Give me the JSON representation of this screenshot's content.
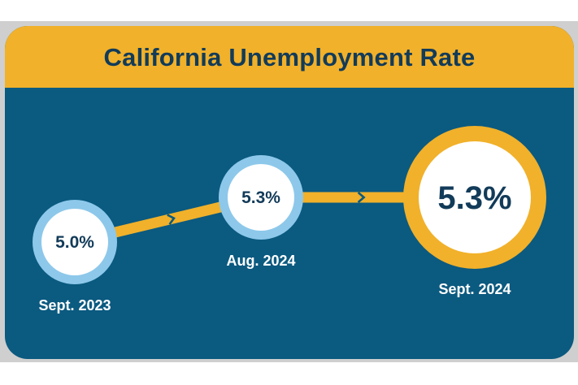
{
  "chart_data": {
    "type": "line",
    "title": "California Unemployment Rate",
    "categories": [
      "Sept. 2023",
      "Aug. 2024",
      "Sept. 2024"
    ],
    "values": [
      5.0,
      5.3,
      5.3
    ],
    "value_labels": [
      "5.0%",
      "5.3%",
      "5.3%"
    ],
    "highlight": "Sept. 2024"
  },
  "colors": {
    "background": "#0b5a80",
    "header": "#f1b12a",
    "line": "#f1b12a",
    "ring": "#8dc8ea",
    "ring_highlight": "#f1b12a",
    "title_text": "#123b59",
    "label_text": "#ffffff"
  }
}
